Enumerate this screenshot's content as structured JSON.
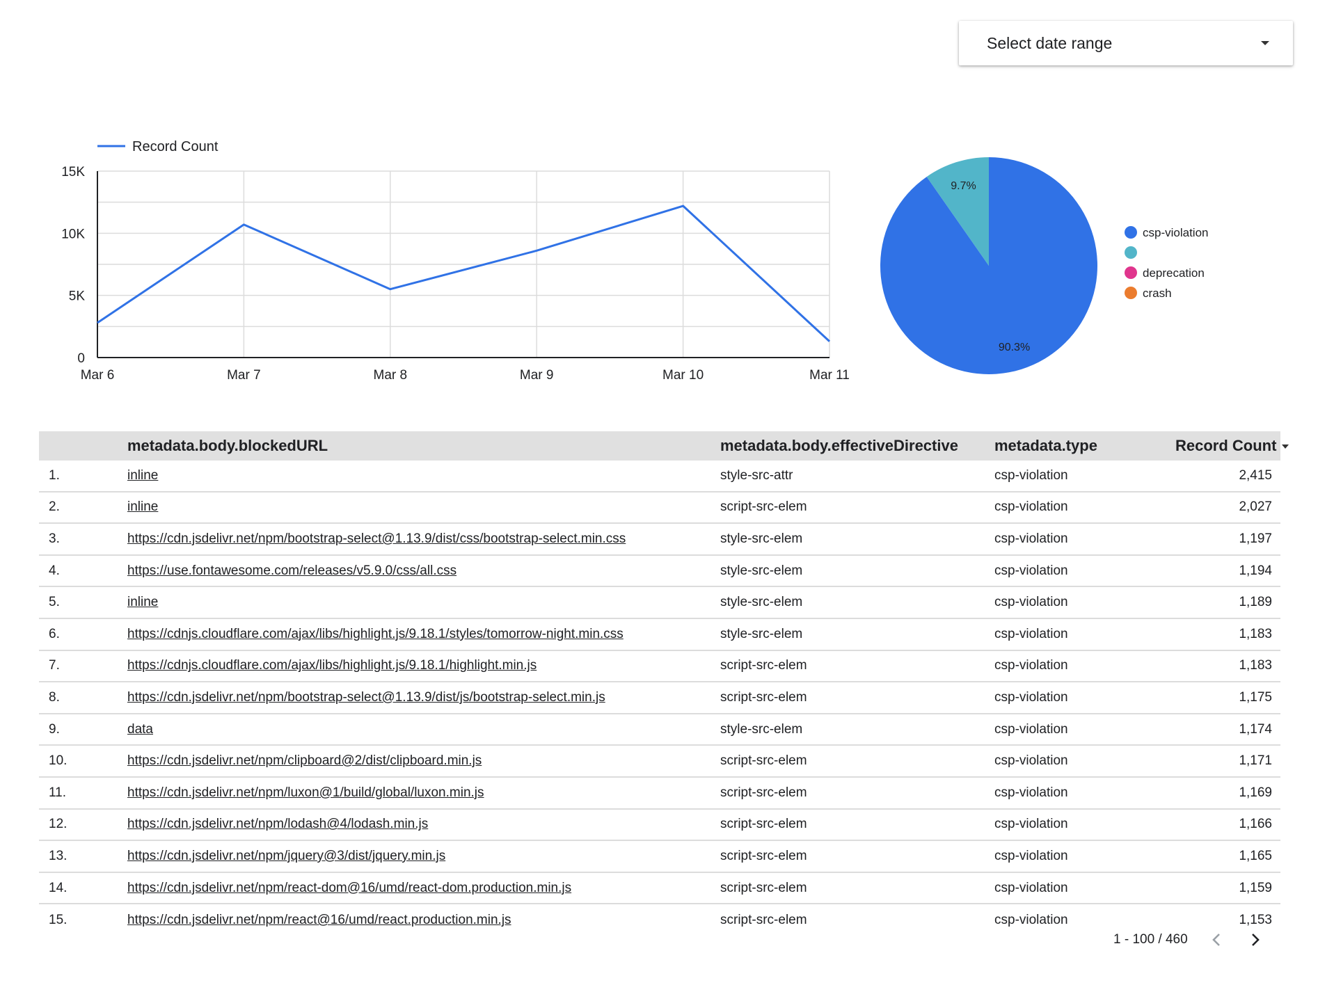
{
  "date_range": {
    "label": "Select date range"
  },
  "line_chart_axis": {
    "y_ticks": [
      "0",
      "5K",
      "10K",
      "15K"
    ],
    "x_ticks": [
      "Mar 6",
      "Mar 7",
      "Mar 8",
      "Mar 9",
      "Mar 10",
      "Mar 11"
    ]
  },
  "chart_data": [
    {
      "type": "line",
      "x": [
        "Mar 6",
        "Mar 7",
        "Mar 8",
        "Mar 9",
        "Mar 10",
        "Mar 11"
      ],
      "series": [
        {
          "name": "Record Count",
          "values": [
            2800,
            10700,
            5500,
            8600,
            12200,
            1300
          ],
          "color": "#3072e6"
        }
      ],
      "ylim": [
        0,
        15000
      ],
      "grid": true,
      "legend": "top-left"
    },
    {
      "type": "pie",
      "slices": [
        {
          "label": "csp-violation",
          "value": 90.3,
          "color": "#3072e6",
          "data_label": "90.3%"
        },
        {
          "label": "",
          "value": 9.7,
          "color": "#52b5c9",
          "data_label": "9.7%"
        },
        {
          "label": "deprecation",
          "value": 0,
          "color": "#e0358d",
          "data_label": ""
        },
        {
          "label": "crash",
          "value": 0,
          "color": "#eb7c2e",
          "data_label": ""
        }
      ],
      "legend": "right"
    }
  ],
  "table": {
    "headers": {
      "url": "metadata.body.blockedURL",
      "directive": "metadata.body.effectiveDirective",
      "type": "metadata.type",
      "count": "Record Count"
    },
    "rows": [
      {
        "idx": "1.",
        "url": "inline",
        "directive": "style-src-attr",
        "type": "csp-violation",
        "count": "2,415"
      },
      {
        "idx": "2.",
        "url": "inline",
        "directive": "script-src-elem",
        "type": "csp-violation",
        "count": "2,027"
      },
      {
        "idx": "3.",
        "url": "https://cdn.jsdelivr.net/npm/bootstrap-select@1.13.9/dist/css/bootstrap-select.min.css",
        "directive": "style-src-elem",
        "type": "csp-violation",
        "count": "1,197"
      },
      {
        "idx": "4.",
        "url": "https://use.fontawesome.com/releases/v5.9.0/css/all.css",
        "directive": "style-src-elem",
        "type": "csp-violation",
        "count": "1,194"
      },
      {
        "idx": "5.",
        "url": "inline",
        "directive": "style-src-elem",
        "type": "csp-violation",
        "count": "1,189"
      },
      {
        "idx": "6.",
        "url": "https://cdnjs.cloudflare.com/ajax/libs/highlight.js/9.18.1/styles/tomorrow-night.min.css",
        "directive": "style-src-elem",
        "type": "csp-violation",
        "count": "1,183"
      },
      {
        "idx": "7.",
        "url": "https://cdnjs.cloudflare.com/ajax/libs/highlight.js/9.18.1/highlight.min.js",
        "directive": "script-src-elem",
        "type": "csp-violation",
        "count": "1,183"
      },
      {
        "idx": "8.",
        "url": "https://cdn.jsdelivr.net/npm/bootstrap-select@1.13.9/dist/js/bootstrap-select.min.js",
        "directive": "script-src-elem",
        "type": "csp-violation",
        "count": "1,175"
      },
      {
        "idx": "9.",
        "url": "data",
        "directive": "style-src-elem",
        "type": "csp-violation",
        "count": "1,174"
      },
      {
        "idx": "10.",
        "url": "https://cdn.jsdelivr.net/npm/clipboard@2/dist/clipboard.min.js",
        "directive": "script-src-elem",
        "type": "csp-violation",
        "count": "1,171"
      },
      {
        "idx": "11.",
        "url": "https://cdn.jsdelivr.net/npm/luxon@1/build/global/luxon.min.js",
        "directive": "script-src-elem",
        "type": "csp-violation",
        "count": "1,169"
      },
      {
        "idx": "12.",
        "url": "https://cdn.jsdelivr.net/npm/lodash@4/lodash.min.js",
        "directive": "script-src-elem",
        "type": "csp-violation",
        "count": "1,166"
      },
      {
        "idx": "13.",
        "url": "https://cdn.jsdelivr.net/npm/jquery@3/dist/jquery.min.js",
        "directive": "script-src-elem",
        "type": "csp-violation",
        "count": "1,165"
      },
      {
        "idx": "14.",
        "url": "https://cdn.jsdelivr.net/npm/react-dom@16/umd/react-dom.production.min.js",
        "directive": "script-src-elem",
        "type": "csp-violation",
        "count": "1,159"
      },
      {
        "idx": "15.",
        "url": "https://cdn.jsdelivr.net/npm/react@16/umd/react.production.min.js",
        "directive": "script-src-elem",
        "type": "csp-violation",
        "count": "1,153"
      }
    ]
  },
  "pager": {
    "range": "1 - 100 / 460"
  }
}
